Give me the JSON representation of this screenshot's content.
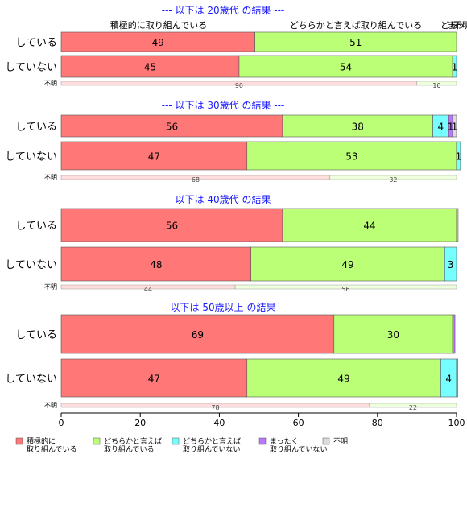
{
  "chart_data": {
    "type": "bar",
    "orientation": "horizontal",
    "stacked": true,
    "xlim": [
      0,
      100
    ],
    "xticks": [
      0,
      20,
      40,
      60,
      80,
      100
    ],
    "colors": {
      "積極的に取り組んでいる": "#ff7777",
      "どちらかと言えば取り組んでいる": "#bbff77",
      "どちらかと言えば取り組んでいない": "#77ffff",
      "まったく取り組んでいない": "#bb77ff",
      "不明": "#dddddd"
    },
    "thin_colors": [
      "#ffdddd",
      "#eeffdd"
    ],
    "category_headers": [
      "積極的に取り組んでいる",
      "どちらかと言えば取り組んでいる",
      "どち",
      "まっ",
      "不明"
    ],
    "legend": [
      {
        "key": "積極的に取り組んでいる",
        "lines": [
          "積極的に",
          "取り組んでいる"
        ]
      },
      {
        "key": "どちらかと言えば取り組んでいる",
        "lines": [
          "どちらかと言えば",
          "取り組んでいる"
        ]
      },
      {
        "key": "どちらかと言えば取り組んでいない",
        "lines": [
          "どちらかと言えば",
          "取り組んでいない"
        ]
      },
      {
        "key": "まったく取り組んでいない",
        "lines": [
          "まったく",
          "取り組んでいない"
        ]
      },
      {
        "key": "不明",
        "lines": [
          "不明"
        ]
      }
    ],
    "panels": [
      {
        "title": "--- 以下は 20歳代 の結果 ---",
        "rows": [
          {
            "label": "している",
            "values": [
              49,
              51,
              0,
              0,
              0
            ]
          },
          {
            "label": "していない",
            "values": [
              45,
              54,
              1,
              0,
              0
            ]
          }
        ],
        "unknown": {
          "label": "不明",
          "values": [
            90,
            10
          ]
        }
      },
      {
        "title": "--- 以下は 30歳代 の結果 ---",
        "rows": [
          {
            "label": "している",
            "values": [
              56,
              38,
              4,
              1,
              1
            ]
          },
          {
            "label": "していない",
            "values": [
              47,
              53,
              1,
              0,
              0
            ]
          }
        ],
        "unknown": {
          "label": "不明",
          "values": [
            68,
            32
          ]
        }
      },
      {
        "title": "--- 以下は 40歳代 の結果 ---",
        "rows": [
          {
            "label": "している",
            "values": [
              56,
              44,
              0.4,
              0,
              0
            ]
          },
          {
            "label": "していない",
            "values": [
              48,
              49,
              3,
              0,
              0
            ]
          }
        ],
        "unknown": {
          "label": "不明",
          "values": [
            44,
            56
          ]
        }
      },
      {
        "title": "--- 以下は 50歳以上 の結果 ---",
        "rows": [
          {
            "label": "している",
            "values": [
              69,
              30,
              0,
              0.6,
              0
            ]
          },
          {
            "label": "していない",
            "values": [
              47,
              49,
              4,
              0.3,
              0
            ]
          }
        ],
        "unknown": {
          "label": "不明",
          "values": [
            78,
            22
          ]
        }
      }
    ]
  }
}
